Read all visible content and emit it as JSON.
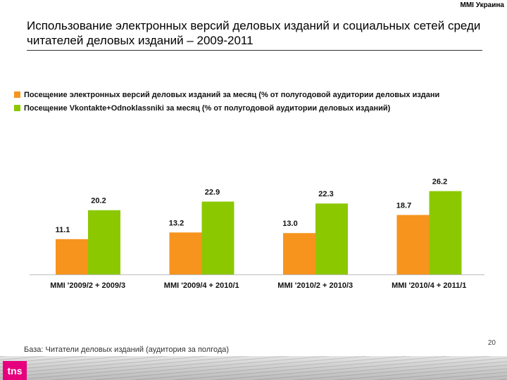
{
  "header": {
    "brand_tag": "MMI Украина",
    "title": "Использование электронных версий деловых изданий и социальных сетей среди читателей деловых изданий – 2009-2011"
  },
  "colors": {
    "series_1": "#F7941D",
    "series_2": "#8CC800"
  },
  "chart_data": {
    "type": "bar",
    "categories": [
      "MMI '2009/2 + 2009/3",
      "MMI '2009/4 + 2010/1",
      "MMI '2010/2 + 2010/3",
      "MMI '2010/4 + 2011/1"
    ],
    "series": [
      {
        "name": "Посещение электронных версий деловых изданий за месяц (% от полугодовой аудитории деловых издани",
        "values": [
          11.1,
          13.2,
          13.0,
          18.7
        ]
      },
      {
        "name": "Посещение Vkontakte+Odnoklassniki за месяц (% от полугодовой аудитории деловых изданий)",
        "values": [
          20.2,
          22.9,
          22.3,
          26.2
        ]
      }
    ],
    "value_labels": [
      [
        "11.1",
        "13.2",
        "13.0",
        "18.7"
      ],
      [
        "20.2",
        "22.9",
        "22.3",
        "26.2"
      ]
    ],
    "ylim": [
      0,
      28
    ],
    "grid": false,
    "legend_position": "top-left"
  },
  "footer": {
    "base_note": "База: Читатели деловых изданий (аудитория за полгода)",
    "page_number": "20",
    "logo_text": "tns"
  }
}
